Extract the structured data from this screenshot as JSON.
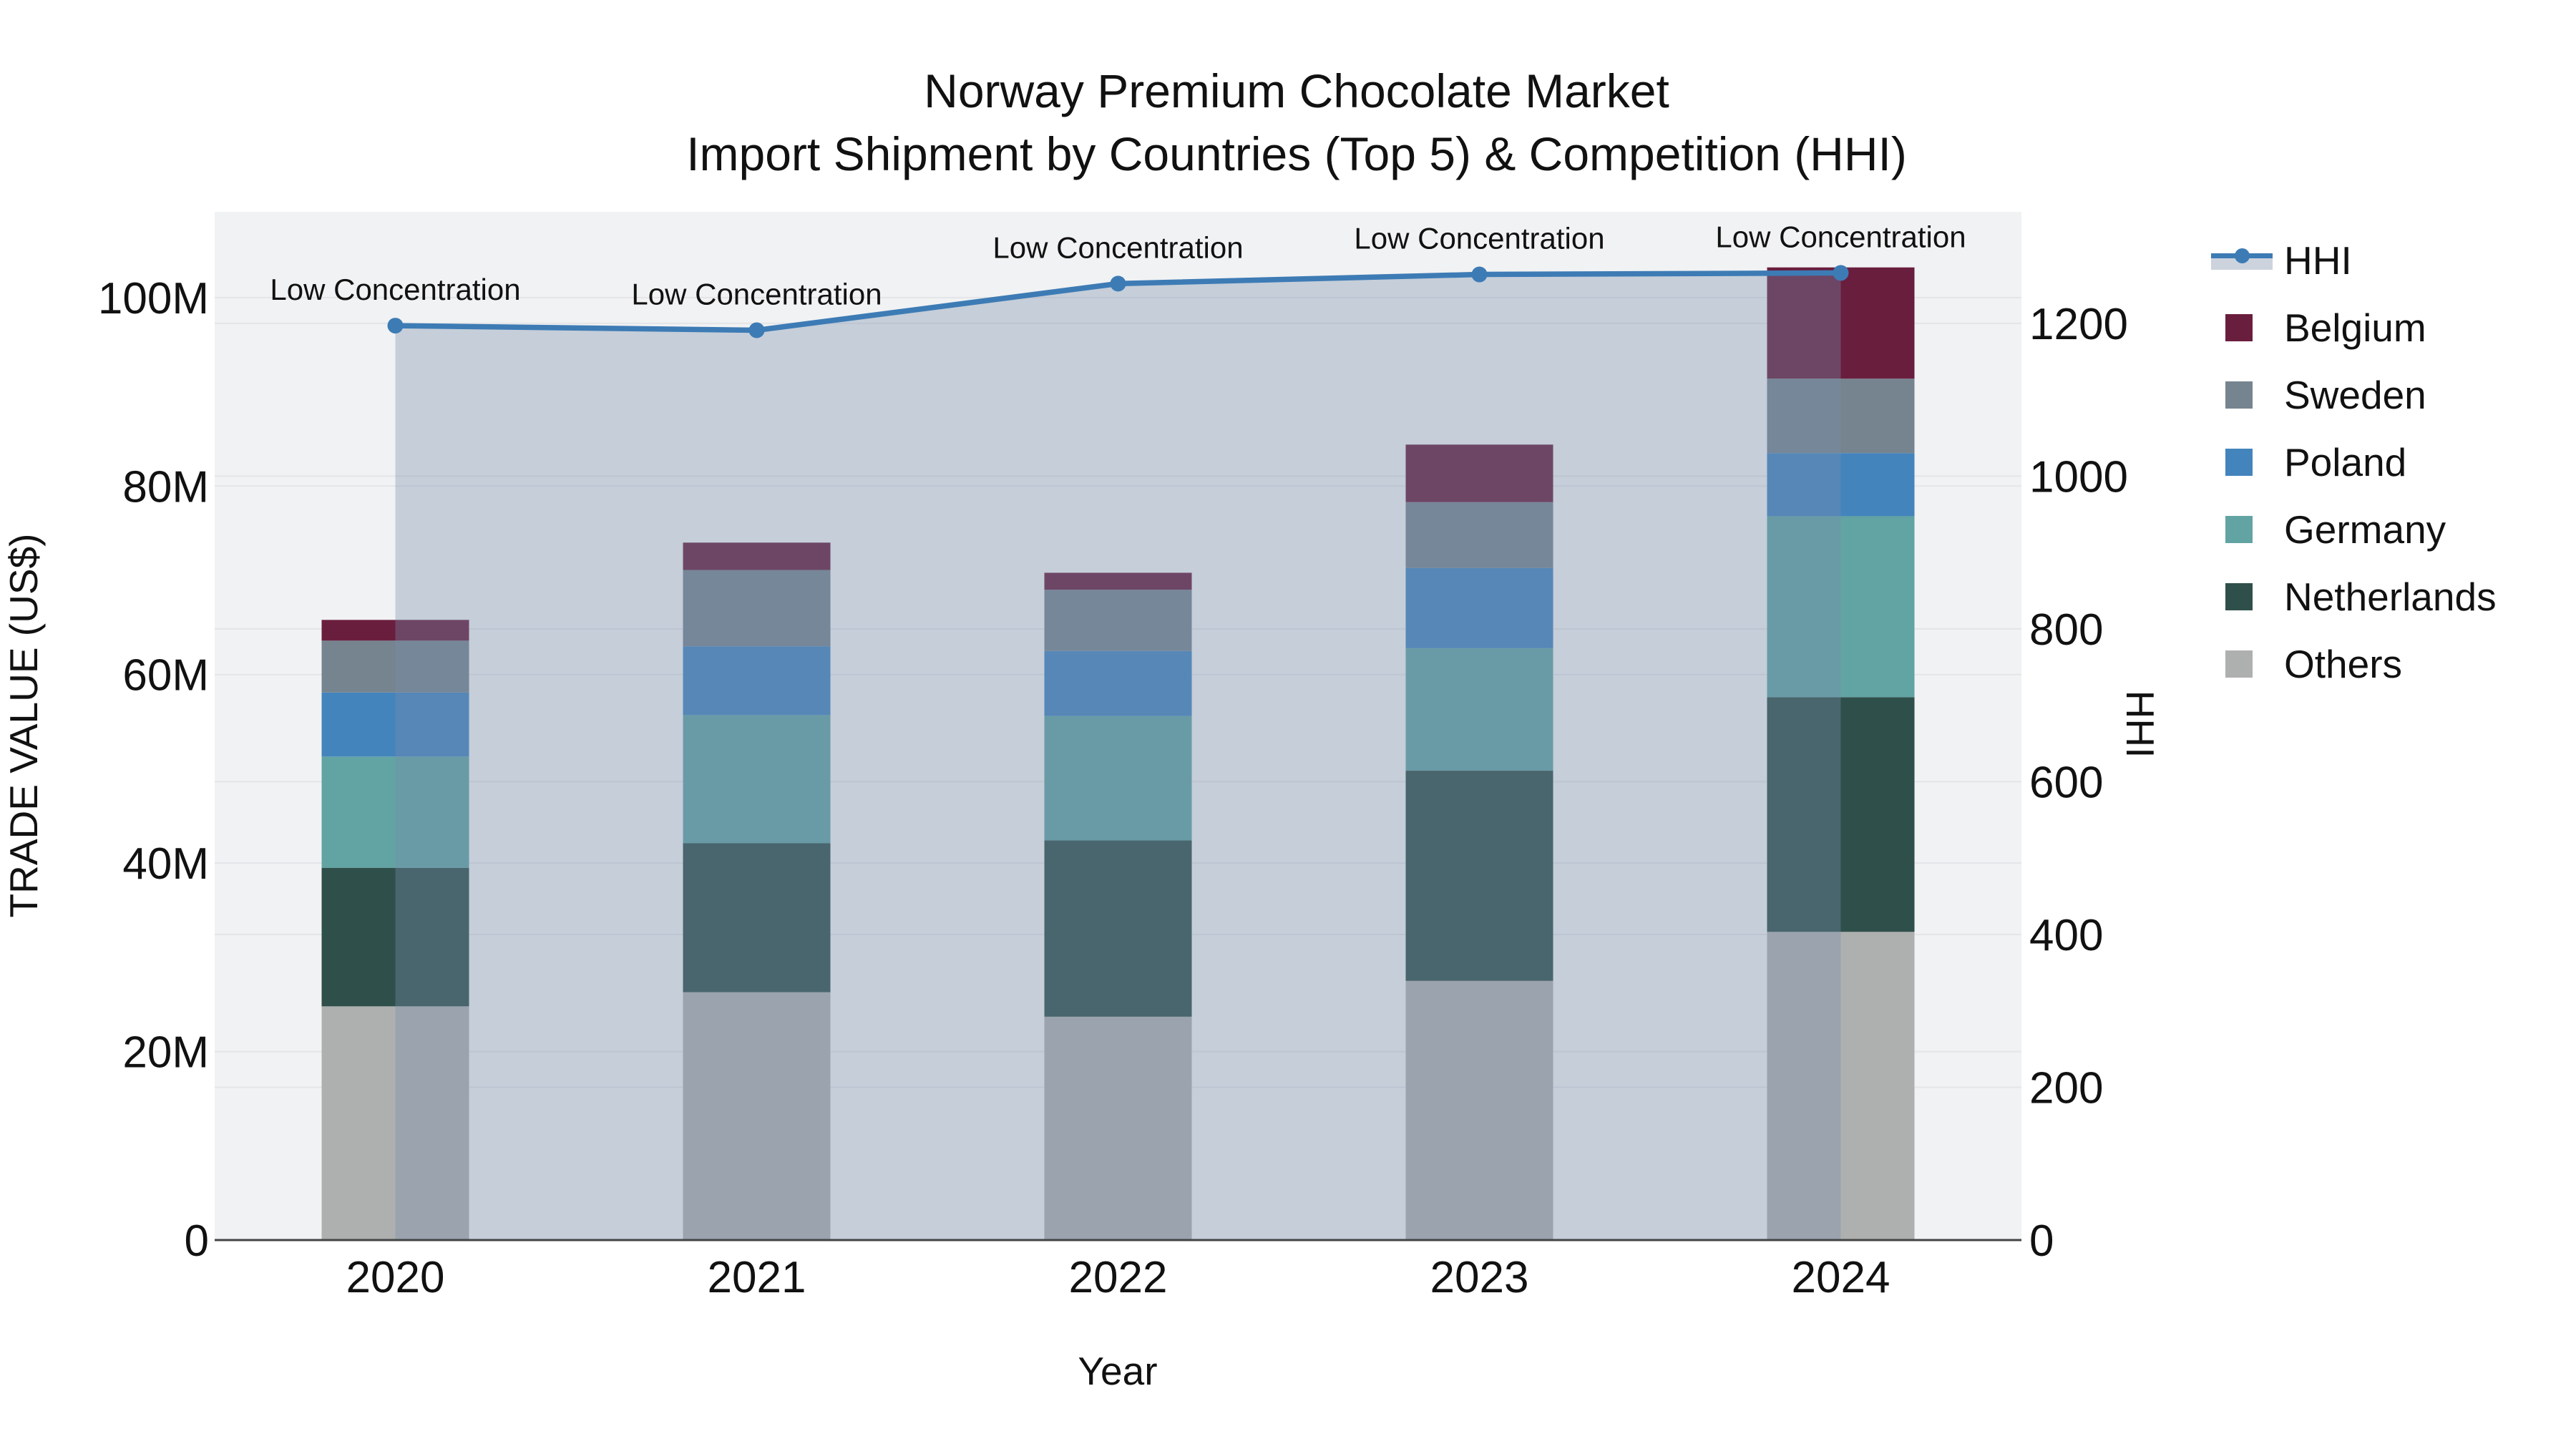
{
  "title": {
    "line1": "Norway Premium Chocolate Market",
    "line2": "Import Shipment by Countries (Top 5) & Competition (HHI)"
  },
  "axes": {
    "x_title": "Year",
    "y_left_title": "TRADE VALUE (US$)",
    "y_right_title": "HHI"
  },
  "colors": {
    "page_bg": "#ffffff",
    "plot_bg": "#f1f2f3",
    "grid": "#e4e5e8",
    "axis_line": "#444444",
    "text": "#111111",
    "hhi_line": "#3d7bb5",
    "hhi_area_fill": "rgba(120,140,172,0.36)",
    "legend_hhi_band": "#ccd3dd"
  },
  "chart_data": {
    "type": "stacked-bar+line-dual-axis",
    "title": "Norway Premium Chocolate Market — Import Shipment by Countries (Top 5) & Competition (HHI)",
    "xlabel": "Year",
    "ylabel_left": "TRADE VALUE (US$)",
    "ylabel_right": "HHI",
    "categories": [
      "2020",
      "2021",
      "2022",
      "2023",
      "2024"
    ],
    "bar_value_unit": "millions of US$",
    "series": [
      {
        "name": "Others",
        "color": "#aeb0af",
        "values": [
          24.8,
          26.3,
          23.7,
          27.5,
          32.7
        ]
      },
      {
        "name": "Netherlands",
        "color": "#2f4f4a",
        "values": [
          14.7,
          15.8,
          18.7,
          22.3,
          24.9
        ]
      },
      {
        "name": "Germany",
        "color": "#62a3a3",
        "values": [
          11.8,
          13.6,
          13.2,
          13.0,
          19.2
        ]
      },
      {
        "name": "Poland",
        "color": "#4484bd",
        "values": [
          6.8,
          7.3,
          6.9,
          8.5,
          6.7
        ]
      },
      {
        "name": "Sweden",
        "color": "#76848f",
        "values": [
          5.5,
          8.1,
          6.5,
          7.0,
          7.9
        ]
      },
      {
        "name": "Belgium",
        "color": "#6a1e3d",
        "values": [
          2.2,
          2.9,
          1.8,
          6.1,
          11.8
        ]
      }
    ],
    "stack_order": "bottom-to-top",
    "hhi": {
      "name": "HHI",
      "values": [
        1197,
        1191,
        1252,
        1264,
        1266
      ],
      "annotation": "Low Concentration"
    },
    "y_left": {
      "range": [
        0,
        109.1
      ],
      "ticks": [
        {
          "v": 0,
          "label": "0"
        },
        {
          "v": 20,
          "label": "20M"
        },
        {
          "v": 40,
          "label": "40M"
        },
        {
          "v": 60,
          "label": "60M"
        },
        {
          "v": 80,
          "label": "80M"
        },
        {
          "v": 100,
          "label": "100M"
        }
      ]
    },
    "y_right": {
      "range": [
        0,
        1346
      ],
      "ticks": [
        {
          "v": 0,
          "label": "0"
        },
        {
          "v": 200,
          "label": "200"
        },
        {
          "v": 400,
          "label": "400"
        },
        {
          "v": 600,
          "label": "600"
        },
        {
          "v": 800,
          "label": "800"
        },
        {
          "v": 1000,
          "label": "1000"
        },
        {
          "v": 1200,
          "label": "1200"
        }
      ]
    },
    "grid": true,
    "legend_position": "right"
  },
  "legend": {
    "order": [
      "HHI",
      "Belgium",
      "Sweden",
      "Poland",
      "Germany",
      "Netherlands",
      "Others"
    ]
  }
}
